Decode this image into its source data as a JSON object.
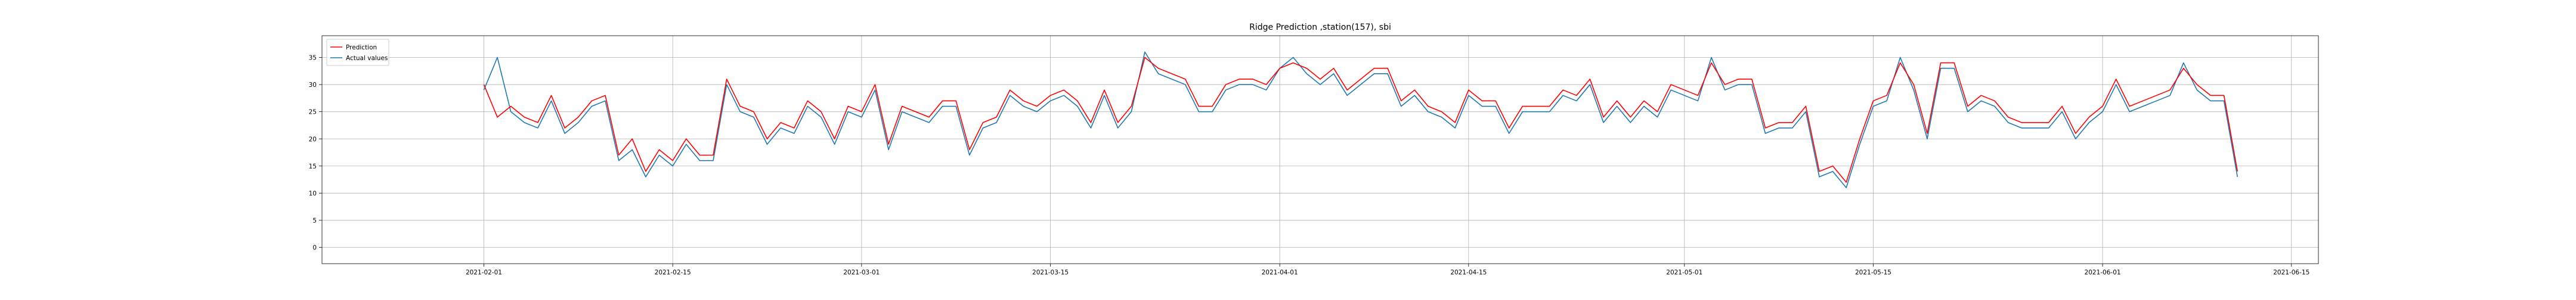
{
  "chart_data": {
    "type": "line",
    "title": "Ridge Prediction ,station(157), sbi",
    "xlabel": "",
    "ylabel": "",
    "x_range": [
      "2021-01-20",
      "2021-06-17"
    ],
    "ylim": [
      -3,
      39
    ],
    "grid": true,
    "legend_position": "top-left",
    "x_ticks": [
      "2021-02-01",
      "2021-02-15",
      "2021-03-01",
      "2021-03-15",
      "2021-04-01",
      "2021-04-15",
      "2021-05-01",
      "2021-05-15",
      "2021-06-01",
      "2021-06-15"
    ],
    "y_ticks": [
      0,
      5,
      10,
      15,
      20,
      25,
      30,
      35
    ],
    "series": [
      {
        "name": "Prediction",
        "color": "#ff0000",
        "x": [
          "2021-02-01",
          "2021-02-02",
          "2021-02-03",
          "2021-02-04",
          "2021-02-05",
          "2021-02-06",
          "2021-02-07",
          "2021-02-08",
          "2021-02-09",
          "2021-02-10",
          "2021-02-11",
          "2021-02-12",
          "2021-02-13",
          "2021-02-14",
          "2021-02-15",
          "2021-02-16",
          "2021-02-17",
          "2021-02-18",
          "2021-02-19",
          "2021-02-20",
          "2021-02-21",
          "2021-02-22",
          "2021-02-23",
          "2021-02-24",
          "2021-02-25",
          "2021-02-26",
          "2021-02-27",
          "2021-02-28",
          "2021-03-01",
          "2021-03-02",
          "2021-03-03",
          "2021-03-04",
          "2021-03-05",
          "2021-03-06",
          "2021-03-07",
          "2021-03-08",
          "2021-03-09",
          "2021-03-10",
          "2021-03-11",
          "2021-03-12",
          "2021-03-13",
          "2021-03-14",
          "2021-03-15",
          "2021-03-16",
          "2021-03-17",
          "2021-03-18",
          "2021-03-19",
          "2021-03-20",
          "2021-03-21",
          "2021-03-22",
          "2021-03-23",
          "2021-03-24",
          "2021-03-25",
          "2021-03-26",
          "2021-03-27",
          "2021-03-28",
          "2021-03-29",
          "2021-03-30",
          "2021-03-31",
          "2021-04-01",
          "2021-04-02",
          "2021-04-03",
          "2021-04-04",
          "2021-04-05",
          "2021-04-06",
          "2021-04-07",
          "2021-04-08",
          "2021-04-09",
          "2021-04-10",
          "2021-04-11",
          "2021-04-12",
          "2021-04-13",
          "2021-04-14",
          "2021-04-15",
          "2021-04-16",
          "2021-04-17",
          "2021-04-18",
          "2021-04-19",
          "2021-04-20",
          "2021-04-21",
          "2021-04-22",
          "2021-04-23",
          "2021-04-24",
          "2021-04-25",
          "2021-04-26",
          "2021-04-27",
          "2021-04-28",
          "2021-04-29",
          "2021-04-30",
          "2021-05-01",
          "2021-05-02",
          "2021-05-03",
          "2021-05-04",
          "2021-05-05",
          "2021-05-06",
          "2021-05-07",
          "2021-05-08",
          "2021-05-09",
          "2021-05-10",
          "2021-05-11",
          "2021-05-12",
          "2021-05-13",
          "2021-05-14",
          "2021-05-15",
          "2021-05-16",
          "2021-05-17",
          "2021-05-18",
          "2021-05-19",
          "2021-05-20",
          "2021-05-21",
          "2021-05-22",
          "2021-05-23",
          "2021-05-24",
          "2021-05-25",
          "2021-05-26",
          "2021-05-27",
          "2021-05-28",
          "2021-05-29",
          "2021-05-30",
          "2021-05-31",
          "2021-06-01",
          "2021-06-02",
          "2021-06-03",
          "2021-06-04",
          "2021-06-05",
          "2021-06-06",
          "2021-06-07",
          "2021-06-08",
          "2021-06-09",
          "2021-06-10",
          "2021-06-11"
        ],
        "y": [
          30,
          24,
          26,
          24,
          23,
          28,
          22,
          24,
          27,
          28,
          17,
          20,
          14,
          18,
          16,
          20,
          17,
          17,
          31,
          26,
          25,
          20,
          23,
          22,
          27,
          25,
          20,
          26,
          25,
          30,
          19,
          26,
          25,
          24,
          27,
          27,
          18,
          23,
          24,
          29,
          27,
          26,
          28,
          29,
          27,
          23,
          29,
          23,
          26,
          35,
          33,
          32,
          31,
          26,
          26,
          30,
          31,
          31,
          30,
          33,
          34,
          33,
          31,
          33,
          29,
          31,
          33,
          33,
          27,
          29,
          26,
          25,
          23,
          29,
          27,
          27,
          22,
          26,
          26,
          26,
          29,
          28,
          31,
          24,
          27,
          24,
          27,
          25,
          30,
          29,
          28,
          34,
          30,
          31,
          31,
          22,
          23,
          23,
          26,
          14,
          15,
          12,
          20,
          27,
          28,
          34,
          30,
          21,
          34,
          34,
          26,
          28,
          27,
          24,
          23,
          23,
          23,
          26,
          21,
          24,
          26,
          31,
          26,
          27,
          28,
          29,
          33,
          30,
          28,
          28,
          14
        ]
      },
      {
        "name": "Actual values",
        "color": "#1f77b4",
        "x": [
          "2021-02-01",
          "2021-02-02",
          "2021-02-03",
          "2021-02-04",
          "2021-02-05",
          "2021-02-06",
          "2021-02-07",
          "2021-02-08",
          "2021-02-09",
          "2021-02-10",
          "2021-02-11",
          "2021-02-12",
          "2021-02-13",
          "2021-02-14",
          "2021-02-15",
          "2021-02-16",
          "2021-02-17",
          "2021-02-18",
          "2021-02-19",
          "2021-02-20",
          "2021-02-21",
          "2021-02-22",
          "2021-02-23",
          "2021-02-24",
          "2021-02-25",
          "2021-02-26",
          "2021-02-27",
          "2021-02-28",
          "2021-03-01",
          "2021-03-02",
          "2021-03-03",
          "2021-03-04",
          "2021-03-05",
          "2021-03-06",
          "2021-03-07",
          "2021-03-08",
          "2021-03-09",
          "2021-03-10",
          "2021-03-11",
          "2021-03-12",
          "2021-03-13",
          "2021-03-14",
          "2021-03-15",
          "2021-03-16",
          "2021-03-17",
          "2021-03-18",
          "2021-03-19",
          "2021-03-20",
          "2021-03-21",
          "2021-03-22",
          "2021-03-23",
          "2021-03-24",
          "2021-03-25",
          "2021-03-26",
          "2021-03-27",
          "2021-03-28",
          "2021-03-29",
          "2021-03-30",
          "2021-03-31",
          "2021-04-01",
          "2021-04-02",
          "2021-04-03",
          "2021-04-04",
          "2021-04-05",
          "2021-04-06",
          "2021-04-07",
          "2021-04-08",
          "2021-04-09",
          "2021-04-10",
          "2021-04-11",
          "2021-04-12",
          "2021-04-13",
          "2021-04-14",
          "2021-04-15",
          "2021-04-16",
          "2021-04-17",
          "2021-04-18",
          "2021-04-19",
          "2021-04-20",
          "2021-04-21",
          "2021-04-22",
          "2021-04-23",
          "2021-04-24",
          "2021-04-25",
          "2021-04-26",
          "2021-04-27",
          "2021-04-28",
          "2021-04-29",
          "2021-04-30",
          "2021-05-01",
          "2021-05-02",
          "2021-05-03",
          "2021-05-04",
          "2021-05-05",
          "2021-05-06",
          "2021-05-07",
          "2021-05-08",
          "2021-05-09",
          "2021-05-10",
          "2021-05-11",
          "2021-05-12",
          "2021-05-13",
          "2021-05-14",
          "2021-05-15",
          "2021-05-16",
          "2021-05-17",
          "2021-05-18",
          "2021-05-19",
          "2021-05-20",
          "2021-05-21",
          "2021-05-22",
          "2021-05-23",
          "2021-05-24",
          "2021-05-25",
          "2021-05-26",
          "2021-05-27",
          "2021-05-28",
          "2021-05-29",
          "2021-05-30",
          "2021-05-31",
          "2021-06-01",
          "2021-06-02",
          "2021-06-03",
          "2021-06-04",
          "2021-06-05",
          "2021-06-06",
          "2021-06-07",
          "2021-06-08",
          "2021-06-09",
          "2021-06-10",
          "2021-06-11"
        ],
        "y": [
          29,
          35,
          25,
          23,
          22,
          27,
          21,
          23,
          26,
          27,
          16,
          18,
          13,
          17,
          15,
          19,
          16,
          16,
          30,
          25,
          24,
          19,
          22,
          21,
          26,
          24,
          19,
          25,
          24,
          29,
          18,
          25,
          24,
          23,
          26,
          26,
          17,
          22,
          23,
          28,
          26,
          25,
          27,
          28,
          26,
          22,
          28,
          22,
          25,
          36,
          32,
          31,
          30,
          25,
          25,
          29,
          30,
          30,
          29,
          33,
          35,
          32,
          30,
          32,
          28,
          30,
          32,
          32,
          26,
          28,
          25,
          24,
          22,
          28,
          26,
          26,
          21,
          25,
          25,
          25,
          28,
          27,
          30,
          23,
          26,
          23,
          26,
          24,
          29,
          28,
          27,
          35,
          29,
          30,
          30,
          21,
          22,
          22,
          25,
          13,
          14,
          11,
          19,
          26,
          27,
          35,
          29,
          20,
          33,
          33,
          25,
          27,
          26,
          23,
          22,
          22,
          22,
          25,
          20,
          23,
          25,
          30,
          25,
          26,
          27,
          28,
          34,
          29,
          27,
          27,
          13
        ]
      }
    ]
  }
}
